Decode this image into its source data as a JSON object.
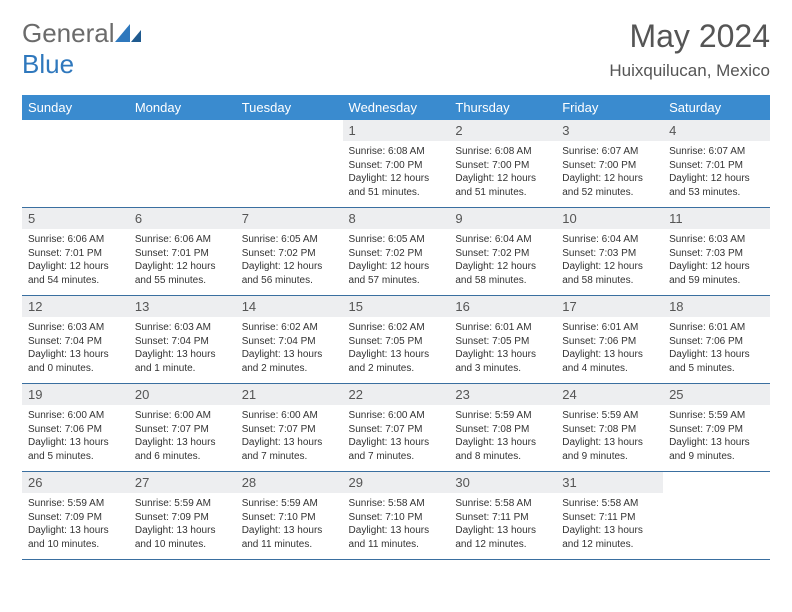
{
  "brand": {
    "name_a": "General",
    "name_b": "Blue"
  },
  "title": "May 2024",
  "location": "Huixquilucan, Mexico",
  "colors": {
    "header_bg": "#3a8bcf",
    "header_fg": "#ffffff",
    "daynum_bg": "#edeef0",
    "row_border": "#3a6fa0",
    "brand_gray": "#6b6b6b",
    "brand_blue": "#2f78bd"
  },
  "weekdays": [
    "Sunday",
    "Monday",
    "Tuesday",
    "Wednesday",
    "Thursday",
    "Friday",
    "Saturday"
  ],
  "weeks": [
    [
      {
        "n": "",
        "sr": "",
        "ss": "",
        "dl": "",
        "empty": true
      },
      {
        "n": "",
        "sr": "",
        "ss": "",
        "dl": "",
        "empty": true
      },
      {
        "n": "",
        "sr": "",
        "ss": "",
        "dl": "",
        "empty": true
      },
      {
        "n": "1",
        "sr": "Sunrise: 6:08 AM",
        "ss": "Sunset: 7:00 PM",
        "dl": "Daylight: 12 hours and 51 minutes."
      },
      {
        "n": "2",
        "sr": "Sunrise: 6:08 AM",
        "ss": "Sunset: 7:00 PM",
        "dl": "Daylight: 12 hours and 51 minutes."
      },
      {
        "n": "3",
        "sr": "Sunrise: 6:07 AM",
        "ss": "Sunset: 7:00 PM",
        "dl": "Daylight: 12 hours and 52 minutes."
      },
      {
        "n": "4",
        "sr": "Sunrise: 6:07 AM",
        "ss": "Sunset: 7:01 PM",
        "dl": "Daylight: 12 hours and 53 minutes."
      }
    ],
    [
      {
        "n": "5",
        "sr": "Sunrise: 6:06 AM",
        "ss": "Sunset: 7:01 PM",
        "dl": "Daylight: 12 hours and 54 minutes."
      },
      {
        "n": "6",
        "sr": "Sunrise: 6:06 AM",
        "ss": "Sunset: 7:01 PM",
        "dl": "Daylight: 12 hours and 55 minutes."
      },
      {
        "n": "7",
        "sr": "Sunrise: 6:05 AM",
        "ss": "Sunset: 7:02 PM",
        "dl": "Daylight: 12 hours and 56 minutes."
      },
      {
        "n": "8",
        "sr": "Sunrise: 6:05 AM",
        "ss": "Sunset: 7:02 PM",
        "dl": "Daylight: 12 hours and 57 minutes."
      },
      {
        "n": "9",
        "sr": "Sunrise: 6:04 AM",
        "ss": "Sunset: 7:02 PM",
        "dl": "Daylight: 12 hours and 58 minutes."
      },
      {
        "n": "10",
        "sr": "Sunrise: 6:04 AM",
        "ss": "Sunset: 7:03 PM",
        "dl": "Daylight: 12 hours and 58 minutes."
      },
      {
        "n": "11",
        "sr": "Sunrise: 6:03 AM",
        "ss": "Sunset: 7:03 PM",
        "dl": "Daylight: 12 hours and 59 minutes."
      }
    ],
    [
      {
        "n": "12",
        "sr": "Sunrise: 6:03 AM",
        "ss": "Sunset: 7:04 PM",
        "dl": "Daylight: 13 hours and 0 minutes."
      },
      {
        "n": "13",
        "sr": "Sunrise: 6:03 AM",
        "ss": "Sunset: 7:04 PM",
        "dl": "Daylight: 13 hours and 1 minute."
      },
      {
        "n": "14",
        "sr": "Sunrise: 6:02 AM",
        "ss": "Sunset: 7:04 PM",
        "dl": "Daylight: 13 hours and 2 minutes."
      },
      {
        "n": "15",
        "sr": "Sunrise: 6:02 AM",
        "ss": "Sunset: 7:05 PM",
        "dl": "Daylight: 13 hours and 2 minutes."
      },
      {
        "n": "16",
        "sr": "Sunrise: 6:01 AM",
        "ss": "Sunset: 7:05 PM",
        "dl": "Daylight: 13 hours and 3 minutes."
      },
      {
        "n": "17",
        "sr": "Sunrise: 6:01 AM",
        "ss": "Sunset: 7:06 PM",
        "dl": "Daylight: 13 hours and 4 minutes."
      },
      {
        "n": "18",
        "sr": "Sunrise: 6:01 AM",
        "ss": "Sunset: 7:06 PM",
        "dl": "Daylight: 13 hours and 5 minutes."
      }
    ],
    [
      {
        "n": "19",
        "sr": "Sunrise: 6:00 AM",
        "ss": "Sunset: 7:06 PM",
        "dl": "Daylight: 13 hours and 5 minutes."
      },
      {
        "n": "20",
        "sr": "Sunrise: 6:00 AM",
        "ss": "Sunset: 7:07 PM",
        "dl": "Daylight: 13 hours and 6 minutes."
      },
      {
        "n": "21",
        "sr": "Sunrise: 6:00 AM",
        "ss": "Sunset: 7:07 PM",
        "dl": "Daylight: 13 hours and 7 minutes."
      },
      {
        "n": "22",
        "sr": "Sunrise: 6:00 AM",
        "ss": "Sunset: 7:07 PM",
        "dl": "Daylight: 13 hours and 7 minutes."
      },
      {
        "n": "23",
        "sr": "Sunrise: 5:59 AM",
        "ss": "Sunset: 7:08 PM",
        "dl": "Daylight: 13 hours and 8 minutes."
      },
      {
        "n": "24",
        "sr": "Sunrise: 5:59 AM",
        "ss": "Sunset: 7:08 PM",
        "dl": "Daylight: 13 hours and 9 minutes."
      },
      {
        "n": "25",
        "sr": "Sunrise: 5:59 AM",
        "ss": "Sunset: 7:09 PM",
        "dl": "Daylight: 13 hours and 9 minutes."
      }
    ],
    [
      {
        "n": "26",
        "sr": "Sunrise: 5:59 AM",
        "ss": "Sunset: 7:09 PM",
        "dl": "Daylight: 13 hours and 10 minutes."
      },
      {
        "n": "27",
        "sr": "Sunrise: 5:59 AM",
        "ss": "Sunset: 7:09 PM",
        "dl": "Daylight: 13 hours and 10 minutes."
      },
      {
        "n": "28",
        "sr": "Sunrise: 5:59 AM",
        "ss": "Sunset: 7:10 PM",
        "dl": "Daylight: 13 hours and 11 minutes."
      },
      {
        "n": "29",
        "sr": "Sunrise: 5:58 AM",
        "ss": "Sunset: 7:10 PM",
        "dl": "Daylight: 13 hours and 11 minutes."
      },
      {
        "n": "30",
        "sr": "Sunrise: 5:58 AM",
        "ss": "Sunset: 7:11 PM",
        "dl": "Daylight: 13 hours and 12 minutes."
      },
      {
        "n": "31",
        "sr": "Sunrise: 5:58 AM",
        "ss": "Sunset: 7:11 PM",
        "dl": "Daylight: 13 hours and 12 minutes."
      },
      {
        "n": "",
        "sr": "",
        "ss": "",
        "dl": "",
        "empty": true
      }
    ]
  ]
}
